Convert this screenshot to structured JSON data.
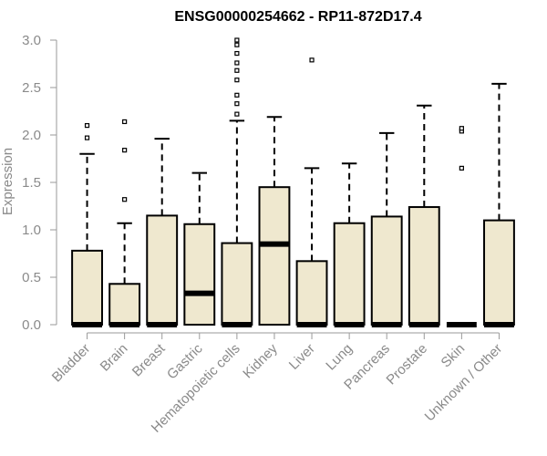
{
  "chart_data": {
    "type": "boxplot",
    "title": "ENSG00000254662 - RP11-872D17.4",
    "xlabel": "",
    "ylabel": "Expression",
    "ylim": [
      0,
      3.0
    ],
    "yticks": [
      "0.0",
      "0.5",
      "1.0",
      "1.5",
      "2.0",
      "2.5",
      "3.0"
    ],
    "grid": false,
    "legend": "none",
    "box_fill": "#efe8cf",
    "line_color": "#000000",
    "categories": [
      "Bladder",
      "Brain",
      "Breast",
      "Gastric",
      "Hematopoietic cells",
      "Kidney",
      "Liver",
      "Lung",
      "Pancreas",
      "Prostate",
      "Skin",
      "Unknown / Other"
    ],
    "boxes": [
      {
        "q1": 0,
        "median": 0,
        "q3": 0.78,
        "whisker_low": 0,
        "whisker_high": 1.8,
        "outliers": [
          1.97,
          2.1
        ]
      },
      {
        "q1": 0,
        "median": 0,
        "q3": 0.43,
        "whisker_low": 0,
        "whisker_high": 1.07,
        "outliers": [
          1.32,
          1.84,
          2.14
        ]
      },
      {
        "q1": 0,
        "median": 0,
        "q3": 1.15,
        "whisker_low": 0,
        "whisker_high": 1.96,
        "outliers": []
      },
      {
        "q1": 0,
        "median": 0.33,
        "q3": 1.06,
        "whisker_low": 0,
        "whisker_high": 1.6,
        "outliers": []
      },
      {
        "q1": 0,
        "median": 0,
        "q3": 0.86,
        "whisker_low": 0,
        "whisker_high": 2.15,
        "outliers": [
          2.22,
          2.33,
          2.42,
          2.58,
          2.68,
          2.76,
          2.86,
          2.95,
          3.0
        ]
      },
      {
        "q1": 0,
        "median": 0.85,
        "q3": 1.45,
        "whisker_low": 0,
        "whisker_high": 2.19,
        "outliers": []
      },
      {
        "q1": 0,
        "median": 0,
        "q3": 0.67,
        "whisker_low": 0,
        "whisker_high": 1.65,
        "outliers": [
          2.79
        ]
      },
      {
        "q1": 0,
        "median": 0,
        "q3": 1.07,
        "whisker_low": 0,
        "whisker_high": 1.7,
        "outliers": []
      },
      {
        "q1": 0,
        "median": 0,
        "q3": 1.14,
        "whisker_low": 0,
        "whisker_high": 2.02,
        "outliers": []
      },
      {
        "q1": 0,
        "median": 0,
        "q3": 1.24,
        "whisker_low": 0,
        "whisker_high": 2.31,
        "outliers": []
      },
      {
        "q1": 0,
        "median": 0,
        "q3": 0,
        "whisker_low": 0,
        "whisker_high": 0,
        "outliers": [
          1.65,
          2.04,
          2.07
        ]
      },
      {
        "q1": 0,
        "median": 0,
        "q3": 1.1,
        "whisker_low": 0,
        "whisker_high": 2.54,
        "outliers": []
      }
    ]
  }
}
